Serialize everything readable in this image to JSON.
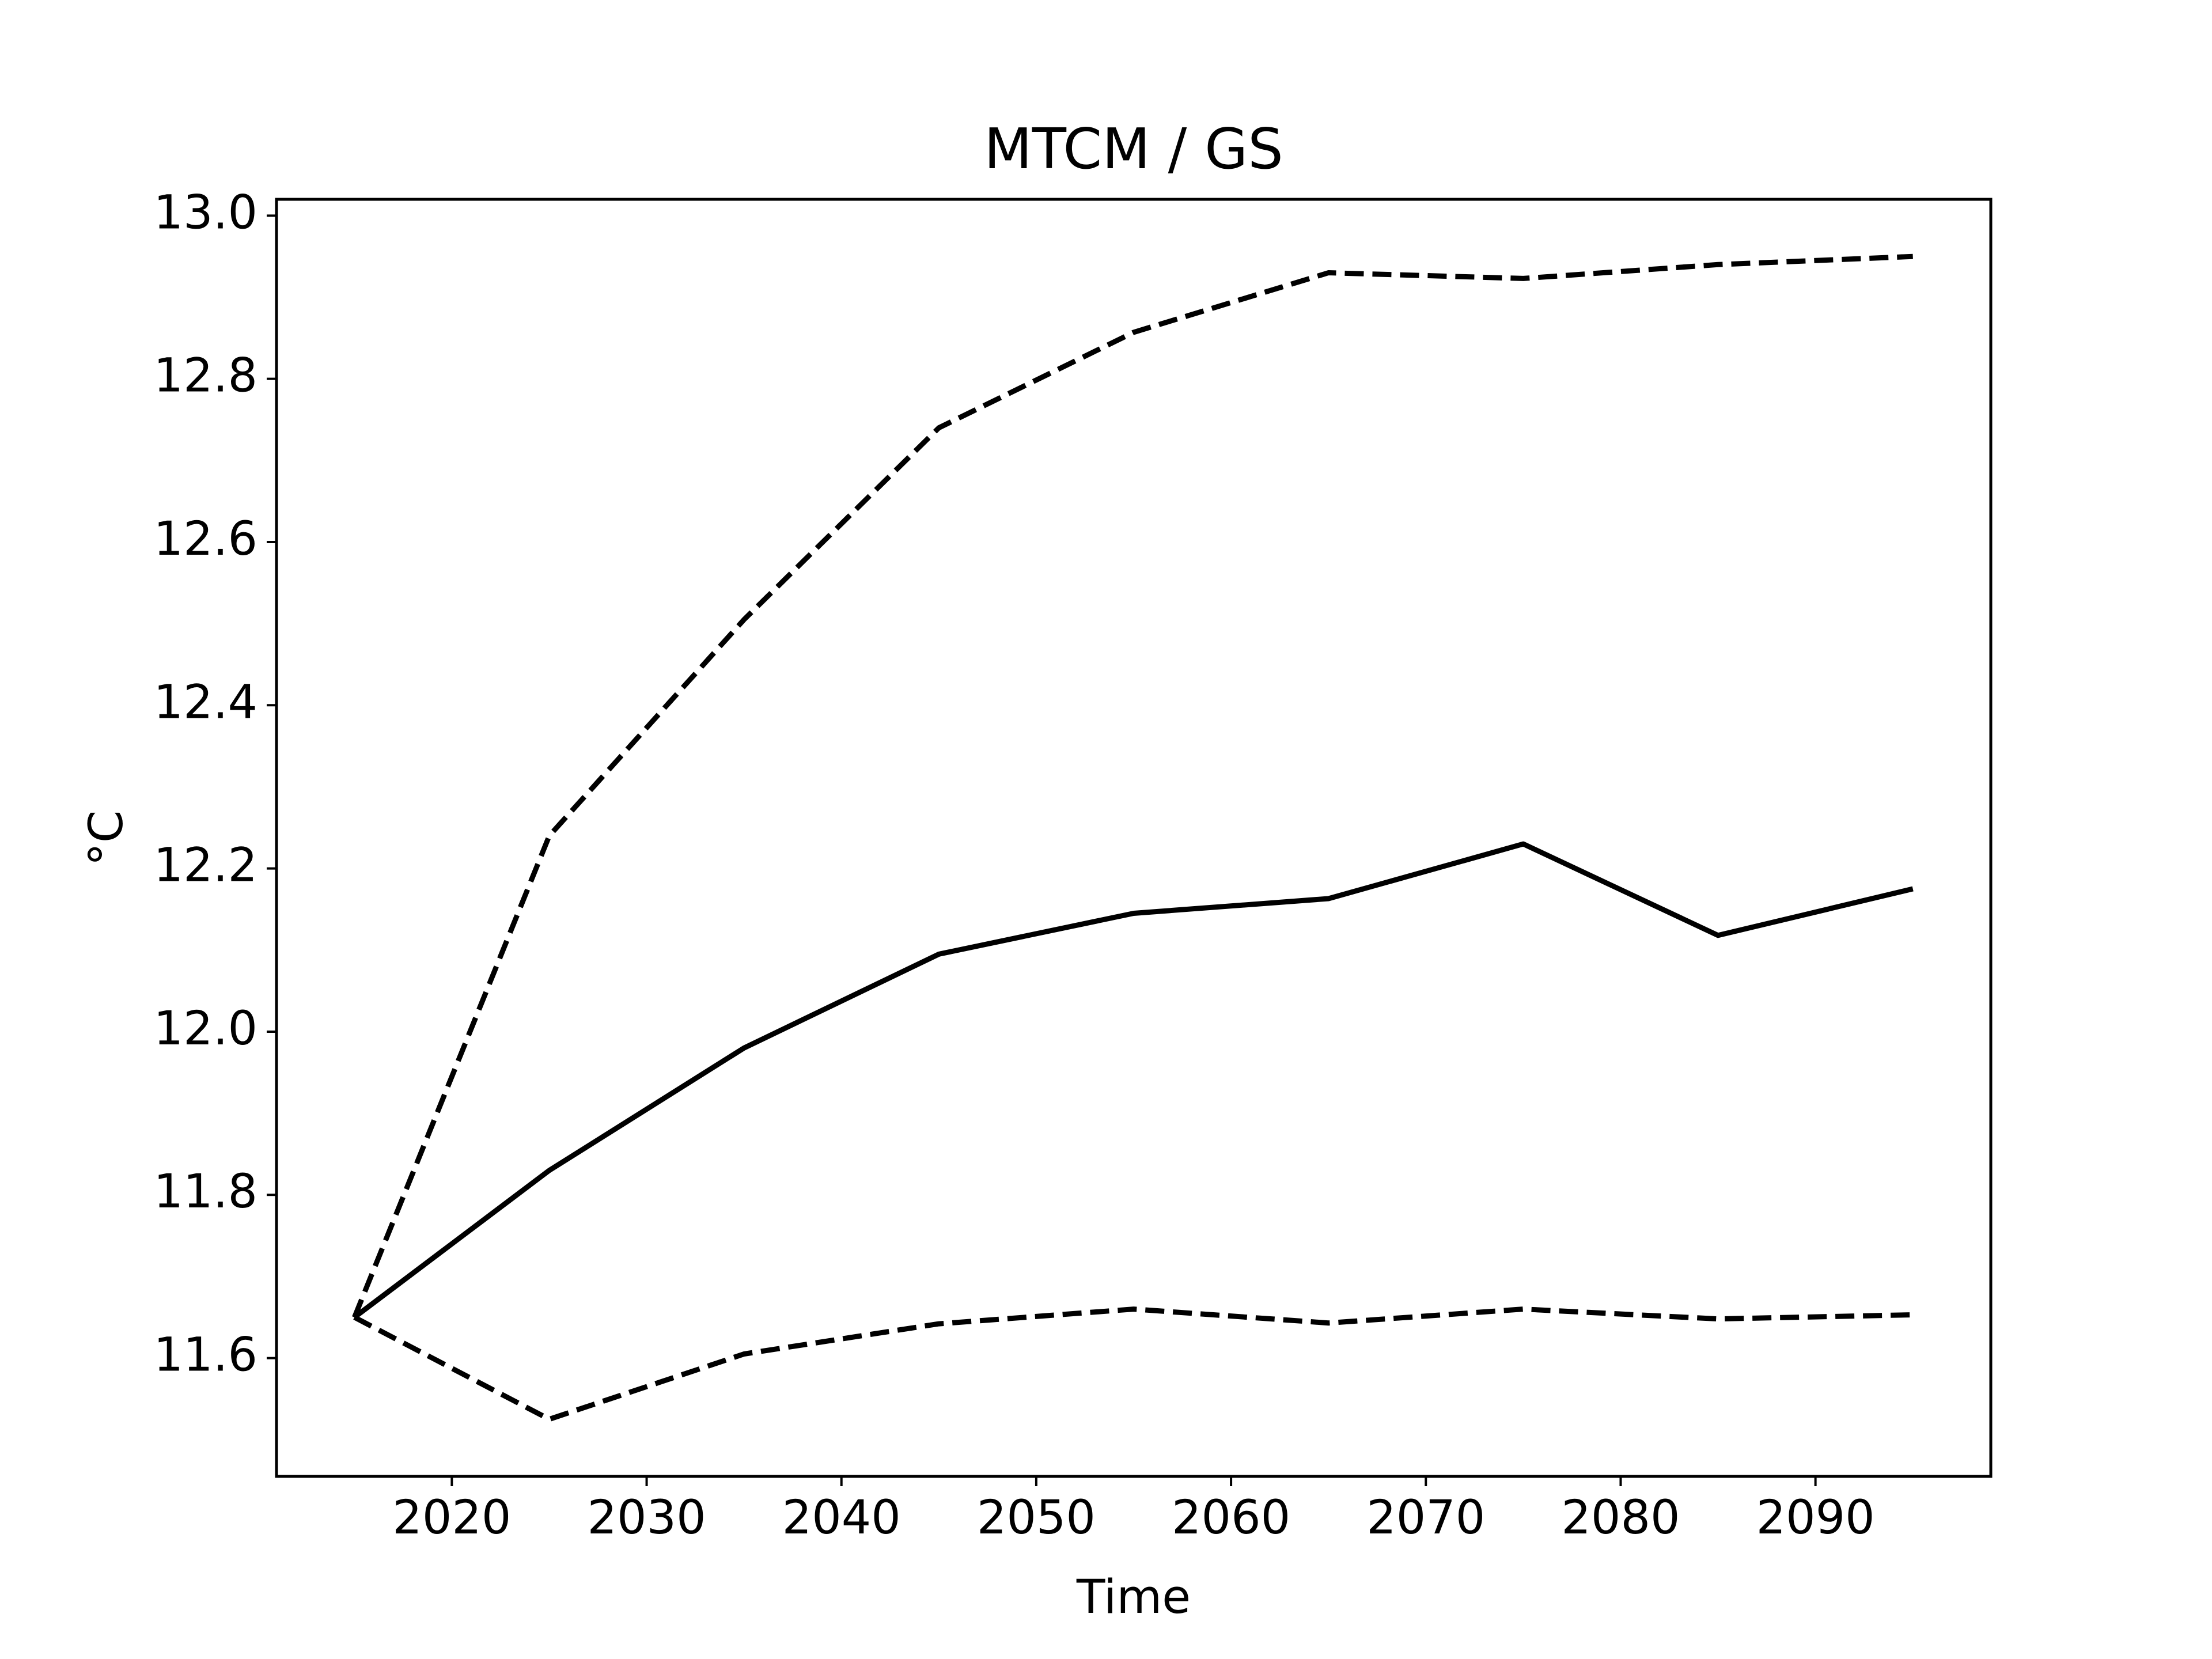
{
  "chart_data": {
    "type": "line",
    "title": "MTCM / GS",
    "xlabel": "Time",
    "ylabel": "°C",
    "xlim": [
      2011,
      2099
    ],
    "ylim": [
      11.455,
      13.02
    ],
    "xticks": [
      2020,
      2030,
      2040,
      2050,
      2060,
      2070,
      2080,
      2090
    ],
    "xtick_labels": [
      "2020",
      "2030",
      "2040",
      "2050",
      "2060",
      "2070",
      "2080",
      "2090"
    ],
    "yticks": [
      11.6,
      11.8,
      12.0,
      12.2,
      12.4,
      12.6,
      12.8,
      13.0
    ],
    "ytick_labels": [
      "11.6",
      "11.8",
      "12.0",
      "12.2",
      "12.4",
      "12.6",
      "12.8",
      "13.0"
    ],
    "grid": false,
    "x": [
      2015,
      2025,
      2035,
      2045,
      2055,
      2065,
      2075,
      2085,
      2095
    ],
    "series": [
      {
        "style": "solid",
        "color": "#000000",
        "values": [
          11.65,
          11.83,
          11.98,
          12.095,
          12.145,
          12.163,
          12.23,
          12.118,
          12.175
        ]
      },
      {
        "style": "dashed",
        "color": "#000000",
        "values": [
          11.65,
          12.24,
          12.505,
          12.74,
          12.857,
          12.93,
          12.923,
          12.94,
          12.95
        ]
      },
      {
        "style": "dashed",
        "color": "#000000",
        "values": [
          11.65,
          11.525,
          11.605,
          11.642,
          11.66,
          11.643,
          11.66,
          11.648,
          11.653
        ]
      }
    ]
  }
}
